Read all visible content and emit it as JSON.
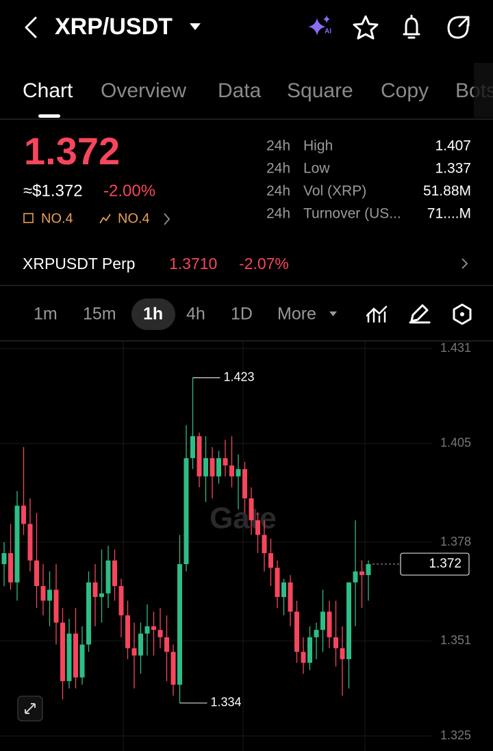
{
  "header": {
    "pair": "XRP/USDT"
  },
  "tabs": [
    "Chart",
    "Overview",
    "Data",
    "Square",
    "Copy",
    "Bots"
  ],
  "ticker": {
    "price": "1.372",
    "usd": "≈$1.372",
    "change": "-2.00%",
    "rank1": "NO.4",
    "rank2": "NO.4",
    "stats": [
      {
        "period": "24h",
        "label": "High",
        "value": "1.407"
      },
      {
        "period": "24h",
        "label": "Low",
        "value": "1.337"
      },
      {
        "period": "24h",
        "label": "Vol (XRP)",
        "value": "51.88M"
      },
      {
        "period": "24h",
        "label": "Turnover (US...",
        "value": "71....M"
      }
    ]
  },
  "perp": {
    "name": "XRPUSDT Perp",
    "price": "1.3710",
    "change": "-2.07%"
  },
  "intervals": [
    "1m",
    "15m",
    "1h",
    "4h",
    "1D",
    "More"
  ],
  "watermark": "Gate",
  "chart_data": {
    "type": "candlestick",
    "ylim": [
      1.325,
      1.431
    ],
    "yticks": [
      1.431,
      1.405,
      1.378,
      1.351,
      1.325
    ],
    "grid": true,
    "up_color": "#2ebd85",
    "down_color": "#f6465d",
    "high_label": 1.423,
    "low_label": 1.334,
    "last_price": 1.372,
    "ohlc": [
      [
        1.372,
        1.378,
        1.366,
        1.375
      ],
      [
        1.375,
        1.383,
        1.365,
        1.367
      ],
      [
        1.367,
        1.392,
        1.362,
        1.388
      ],
      [
        1.388,
        1.404,
        1.38,
        1.383
      ],
      [
        1.383,
        1.39,
        1.37,
        1.373
      ],
      [
        1.373,
        1.386,
        1.36,
        1.366
      ],
      [
        1.366,
        1.372,
        1.358,
        1.362
      ],
      [
        1.362,
        1.37,
        1.355,
        1.365
      ],
      [
        1.365,
        1.372,
        1.35,
        1.356
      ],
      [
        1.356,
        1.36,
        1.335,
        1.34
      ],
      [
        1.34,
        1.357,
        1.338,
        1.353
      ],
      [
        1.353,
        1.36,
        1.338,
        1.341
      ],
      [
        1.341,
        1.355,
        1.339,
        1.35
      ],
      [
        1.35,
        1.37,
        1.348,
        1.367
      ],
      [
        1.367,
        1.372,
        1.355,
        1.363
      ],
      [
        1.363,
        1.376,
        1.356,
        1.364
      ],
      [
        1.364,
        1.377,
        1.36,
        1.373
      ],
      [
        1.373,
        1.376,
        1.362,
        1.366
      ],
      [
        1.366,
        1.368,
        1.352,
        1.358
      ],
      [
        1.358,
        1.362,
        1.346,
        1.349
      ],
      [
        1.349,
        1.356,
        1.338,
        1.347
      ],
      [
        1.347,
        1.356,
        1.342,
        1.353
      ],
      [
        1.353,
        1.361,
        1.347,
        1.355
      ],
      [
        1.355,
        1.359,
        1.347,
        1.354
      ],
      [
        1.354,
        1.36,
        1.349,
        1.352
      ],
      [
        1.352,
        1.358,
        1.34,
        1.348
      ],
      [
        1.348,
        1.35,
        1.336,
        1.339
      ],
      [
        1.339,
        1.38,
        1.334,
        1.372
      ],
      [
        1.372,
        1.41,
        1.37,
        1.401
      ],
      [
        1.401,
        1.423,
        1.398,
        1.407
      ],
      [
        1.407,
        1.408,
        1.393,
        1.396
      ],
      [
        1.396,
        1.407,
        1.389,
        1.401
      ],
      [
        1.401,
        1.404,
        1.39,
        1.396
      ],
      [
        1.396,
        1.403,
        1.394,
        1.401
      ],
      [
        1.401,
        1.406,
        1.396,
        1.399
      ],
      [
        1.399,
        1.407,
        1.393,
        1.396
      ],
      [
        1.396,
        1.402,
        1.387,
        1.398
      ],
      [
        1.398,
        1.4,
        1.386,
        1.39
      ],
      [
        1.39,
        1.393,
        1.38,
        1.384
      ],
      [
        1.384,
        1.386,
        1.375,
        1.38
      ],
      [
        1.38,
        1.384,
        1.37,
        1.375
      ],
      [
        1.375,
        1.379,
        1.366,
        1.371
      ],
      [
        1.371,
        1.373,
        1.36,
        1.363
      ],
      [
        1.363,
        1.368,
        1.358,
        1.367
      ],
      [
        1.367,
        1.369,
        1.355,
        1.359
      ],
      [
        1.359,
        1.362,
        1.345,
        1.348
      ],
      [
        1.348,
        1.352,
        1.342,
        1.345
      ],
      [
        1.345,
        1.355,
        1.343,
        1.352
      ],
      [
        1.352,
        1.356,
        1.346,
        1.354
      ],
      [
        1.354,
        1.365,
        1.348,
        1.359
      ],
      [
        1.359,
        1.362,
        1.349,
        1.352
      ],
      [
        1.352,
        1.362,
        1.344,
        1.349
      ],
      [
        1.349,
        1.355,
        1.336,
        1.346
      ],
      [
        1.346,
        1.367,
        1.338,
        1.367
      ],
      [
        1.367,
        1.384,
        1.355,
        1.37
      ],
      [
        1.37,
        1.373,
        1.36,
        1.369
      ],
      [
        1.369,
        1.373,
        1.362,
        1.372
      ]
    ]
  }
}
